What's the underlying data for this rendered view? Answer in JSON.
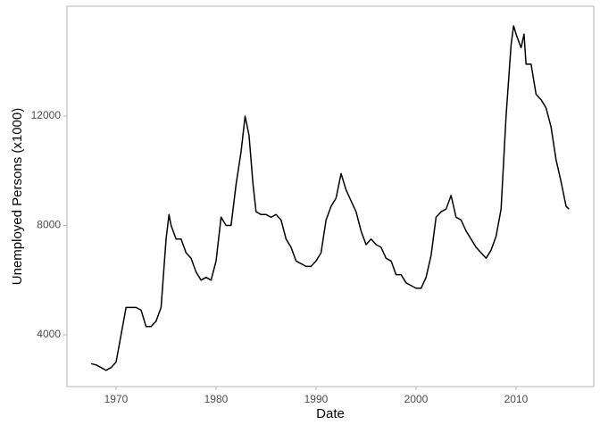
{
  "chart_data": {
    "type": "line",
    "x_label": "Date",
    "y_label": "Unemployed Persons (x1000)",
    "x": [
      1967.5,
      1968,
      1968.5,
      1969,
      1969.5,
      1970,
      1970.5,
      1971,
      1971.5,
      1972,
      1972.5,
      1973,
      1973.5,
      1974,
      1974.5,
      1975,
      1975.3,
      1975.5,
      1976,
      1976.5,
      1977,
      1977.5,
      1978,
      1978.5,
      1979,
      1979.5,
      1980,
      1980.5,
      1981,
      1981.5,
      1982,
      1982.5,
      1982.9,
      1983.3,
      1983.7,
      1984,
      1984.5,
      1985,
      1985.5,
      1986,
      1986.5,
      1987,
      1987.5,
      1988,
      1988.5,
      1989,
      1989.5,
      1990,
      1990.5,
      1991,
      1991.5,
      1992,
      1992.5,
      1993,
      1993.5,
      1994,
      1994.5,
      1995,
      1995.5,
      1996,
      1996.5,
      1997,
      1997.5,
      1998,
      1998.5,
      1999,
      1999.5,
      2000,
      2000.5,
      2001,
      2001.5,
      2002,
      2002.5,
      2003,
      2003.5,
      2004,
      2004.5,
      2005,
      2005.5,
      2006,
      2006.5,
      2007,
      2007.5,
      2008,
      2008.5,
      2009,
      2009.5,
      2009.75,
      2010,
      2010.5,
      2010.8,
      2011,
      2011.5,
      2012,
      2012.5,
      2013,
      2013.5,
      2014,
      2014.5,
      2015,
      2015.3
    ],
    "series": [
      {
        "color": "#000000",
        "values": [
          2944,
          2900,
          2800,
          2700,
          2800,
          3000,
          4000,
          5000,
          5000,
          5000,
          4900,
          4300,
          4300,
          4500,
          5000,
          7500,
          8400,
          8000,
          7500,
          7500,
          7000,
          6800,
          6300,
          6000,
          6100,
          6000,
          6700,
          8300,
          8000,
          8000,
          9500,
          10700,
          12000,
          11300,
          9500,
          8500,
          8400,
          8400,
          8300,
          8400,
          8200,
          7500,
          7200,
          6700,
          6600,
          6500,
          6500,
          6700,
          7000,
          8200,
          8700,
          9000,
          9900,
          9300,
          8900,
          8500,
          7800,
          7300,
          7500,
          7300,
          7200,
          6800,
          6700,
          6200,
          6200,
          5900,
          5800,
          5700,
          5700,
          6100,
          6900,
          8300,
          8500,
          8600,
          9100,
          8300,
          8200,
          7800,
          7500,
          7200,
          7000,
          6800,
          7100,
          7600,
          8600,
          12000,
          14600,
          15300,
          15000,
          14500,
          15000,
          13900,
          13900,
          12800,
          12600,
          12300,
          11600,
          10400,
          9600,
          8700,
          8600
        ]
      }
    ],
    "xlim": [
      1965.09,
      2017.77
    ],
    "xticks": [
      1970,
      1980,
      1990,
      2000,
      2010
    ],
    "ylim": [
      2105,
      16020
    ],
    "yticks": [
      4000,
      8000,
      12000
    ]
  }
}
